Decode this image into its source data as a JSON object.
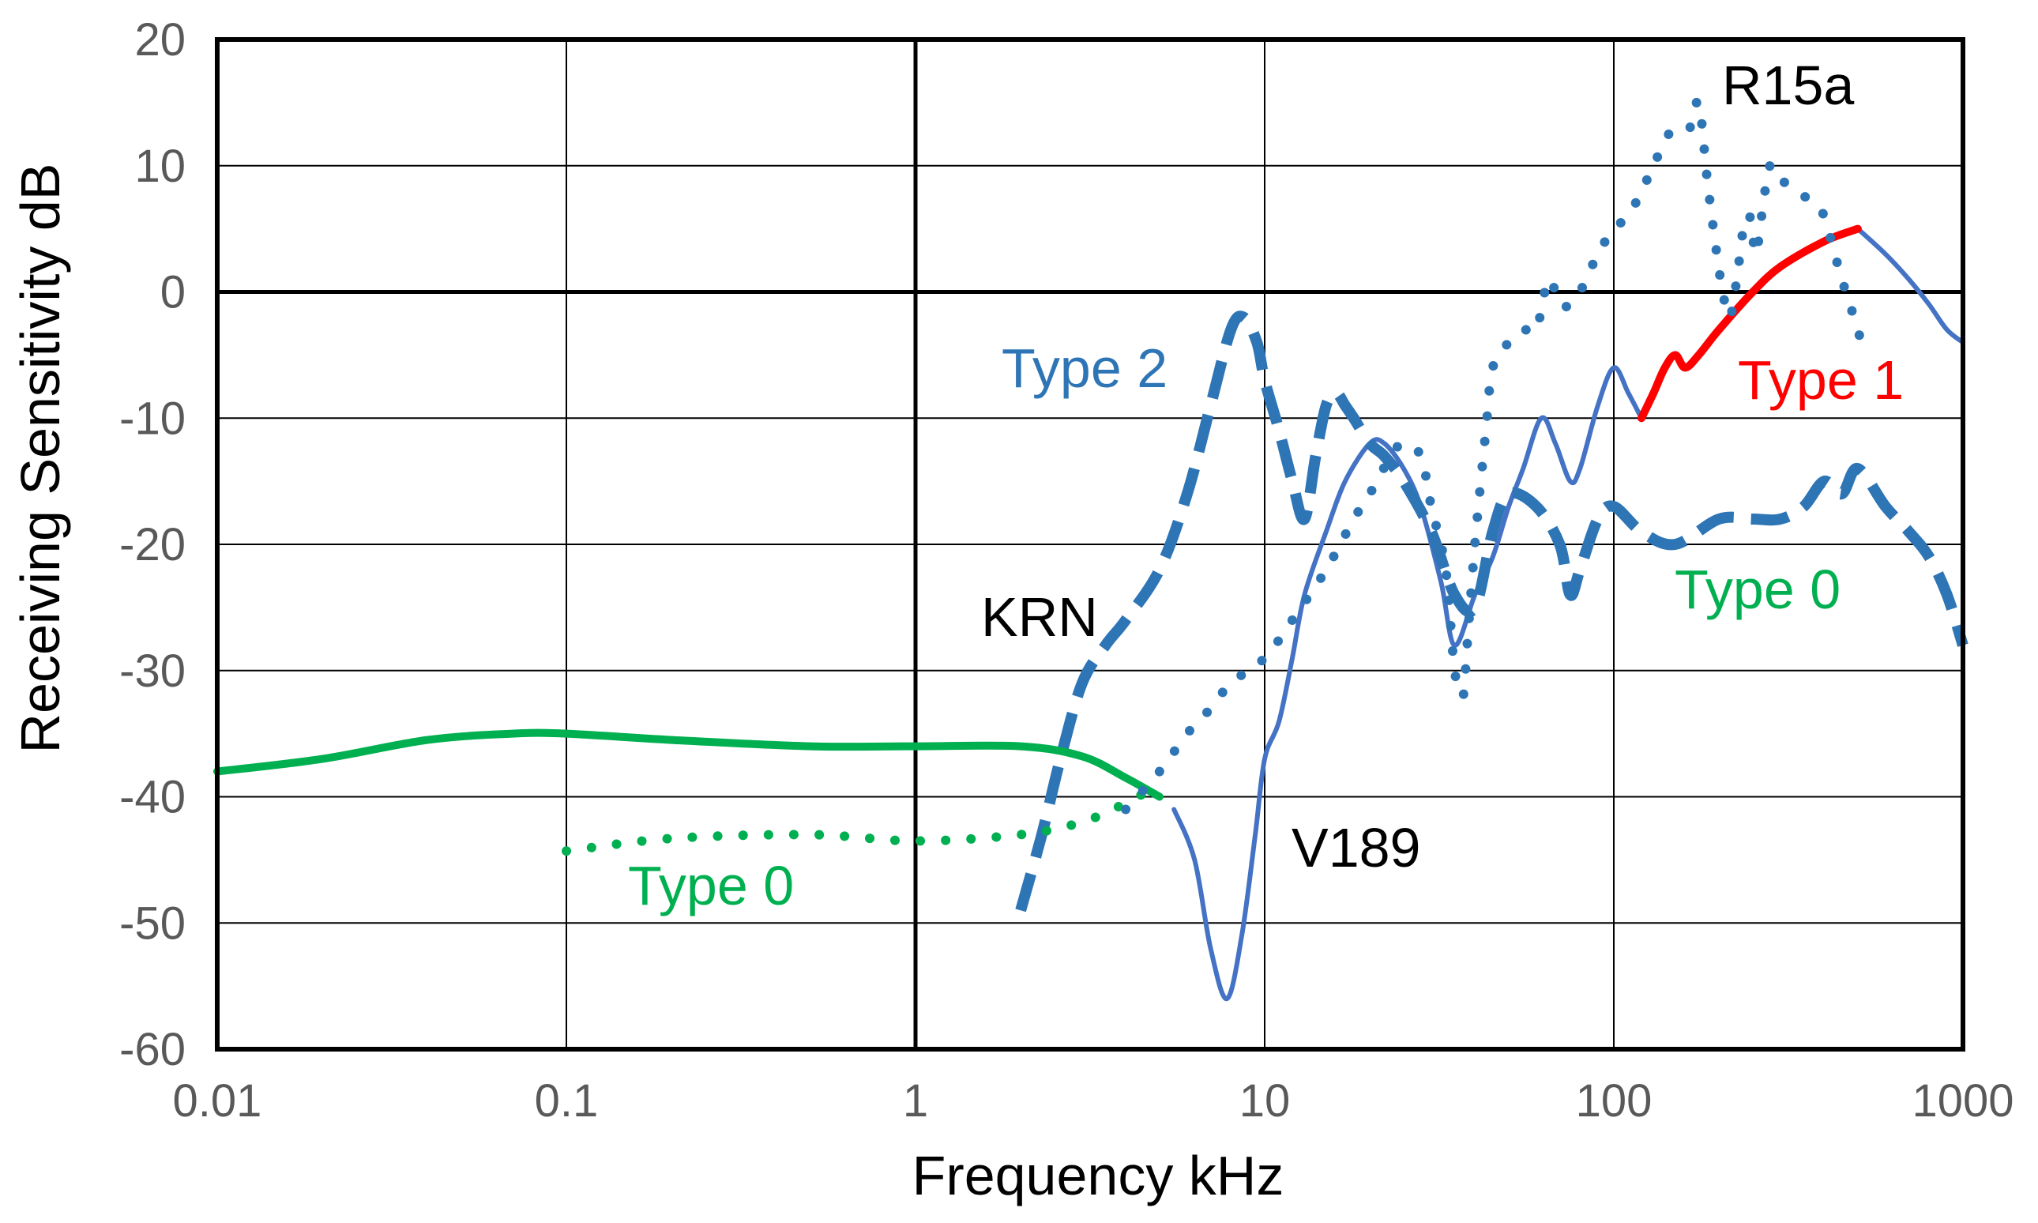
{
  "chart_data": {
    "type": "line",
    "title": "",
    "xlabel": "Frequency  kHz",
    "ylabel": "Receiving Sensitivity  dB",
    "x_scale": "log",
    "xlim": [
      0.01,
      1000
    ],
    "ylim": [
      -60,
      20
    ],
    "grid": true,
    "x_ticks": [
      0.01,
      0.1,
      1,
      10,
      100,
      1000
    ],
    "x_tick_labels": [
      "0.01",
      "0.1",
      "1",
      "10",
      "100",
      "1000"
    ],
    "y_ticks": [
      20,
      10,
      0,
      -10,
      -20,
      -30,
      -40,
      -50,
      -60
    ],
    "y_tick_labels": [
      "20",
      "10",
      "0",
      "-10",
      "-20",
      "-30",
      "-40",
      "-50",
      "-60"
    ],
    "series": [
      {
        "name": "V189",
        "style": "solid-thin",
        "color": "#4472C4",
        "points": [
          [
            5.5,
            -41
          ],
          [
            6.3,
            -45
          ],
          [
            7,
            -52
          ],
          [
            7.8,
            -56
          ],
          [
            8.6,
            -51
          ],
          [
            9.4,
            -43
          ],
          [
            10,
            -37
          ],
          [
            11,
            -34
          ],
          [
            12,
            -29
          ],
          [
            13,
            -24
          ],
          [
            15,
            -19
          ],
          [
            17,
            -15
          ],
          [
            20,
            -12
          ],
          [
            22,
            -12
          ],
          [
            25,
            -14
          ],
          [
            28,
            -17
          ],
          [
            32,
            -23
          ],
          [
            35,
            -28
          ],
          [
            40,
            -24
          ],
          [
            45,
            -21
          ],
          [
            50,
            -17
          ],
          [
            55,
            -14
          ],
          [
            62,
            -10
          ],
          [
            68,
            -12
          ],
          [
            75,
            -15
          ],
          [
            80,
            -14
          ],
          [
            90,
            -9
          ],
          [
            100,
            -6
          ],
          [
            110,
            -8
          ],
          [
            120,
            -10
          ]
        ]
      },
      {
        "name": "V189-high",
        "style": "solid-thin",
        "color": "#4472C4",
        "points": [
          [
            500,
            5
          ],
          [
            600,
            3
          ],
          [
            700,
            1
          ],
          [
            800,
            -1
          ],
          [
            900,
            -3
          ],
          [
            1000,
            -4
          ]
        ]
      },
      {
        "name": "Type 1",
        "style": "solid-thick",
        "color": "#FF0000",
        "points": [
          [
            120,
            -10
          ],
          [
            130,
            -8
          ],
          [
            140,
            -6
          ],
          [
            150,
            -5
          ],
          [
            160,
            -6
          ],
          [
            175,
            -5
          ],
          [
            200,
            -3
          ],
          [
            250,
            0
          ],
          [
            300,
            2
          ],
          [
            400,
            4
          ],
          [
            500,
            5
          ]
        ]
      },
      {
        "name": "Type 2 (KRN)",
        "style": "dashed",
        "color": "#2E75B6",
        "points": [
          [
            2,
            -49
          ],
          [
            2.3,
            -43
          ],
          [
            2.6,
            -37
          ],
          [
            3,
            -31
          ],
          [
            3.5,
            -28
          ],
          [
            4,
            -26
          ],
          [
            5,
            -22
          ],
          [
            6,
            -16
          ],
          [
            7,
            -9
          ],
          [
            8,
            -3
          ],
          [
            8.7,
            -2
          ],
          [
            9.5,
            -4
          ],
          [
            10,
            -7
          ],
          [
            11,
            -11
          ],
          [
            12,
            -15
          ],
          [
            13,
            -18
          ],
          [
            14,
            -13
          ],
          [
            15,
            -9
          ],
          [
            16,
            -8
          ],
          [
            17,
            -9
          ],
          [
            18,
            -10
          ],
          [
            20,
            -12
          ],
          [
            22,
            -13
          ],
          [
            25,
            -15
          ],
          [
            30,
            -19
          ],
          [
            35,
            -24
          ],
          [
            40,
            -25
          ],
          [
            45,
            -19
          ],
          [
            50,
            -16
          ],
          [
            60,
            -17
          ],
          [
            70,
            -20
          ],
          [
            75,
            -24
          ],
          [
            80,
            -22
          ],
          [
            90,
            -18
          ],
          [
            100,
            -17
          ],
          [
            120,
            -19
          ],
          [
            150,
            -20
          ],
          [
            200,
            -18
          ],
          [
            250,
            -18
          ],
          [
            300,
            -18
          ],
          [
            350,
            -17
          ],
          [
            400,
            -15
          ],
          [
            450,
            -16
          ],
          [
            500,
            -14
          ],
          [
            600,
            -17
          ],
          [
            700,
            -19
          ],
          [
            800,
            -21
          ],
          [
            900,
            -24
          ],
          [
            1000,
            -28
          ]
        ]
      },
      {
        "name": "Type 0 (solid)",
        "style": "solid-thick",
        "color": "#00B050",
        "points": [
          [
            0.01,
            -38
          ],
          [
            0.02,
            -37
          ],
          [
            0.04,
            -35.5
          ],
          [
            0.07,
            -35
          ],
          [
            0.1,
            -35
          ],
          [
            0.2,
            -35.5
          ],
          [
            0.5,
            -36
          ],
          [
            1,
            -36
          ],
          [
            2,
            -36
          ],
          [
            3,
            -36.8
          ],
          [
            4,
            -38.5
          ],
          [
            5,
            -40
          ]
        ]
      },
      {
        "name": "Type 0 (dotted)",
        "style": "dotted",
        "color": "#00B050",
        "points": [
          [
            0.1,
            -44.3
          ],
          [
            0.2,
            -43.3
          ],
          [
            0.5,
            -43
          ],
          [
            1,
            -43.5
          ],
          [
            2,
            -43
          ],
          [
            3,
            -42
          ],
          [
            4,
            -40.5
          ],
          [
            5,
            -39
          ]
        ]
      },
      {
        "name": "R15a",
        "style": "dotted",
        "color": "#2E75B6",
        "points": [
          [
            4,
            -41
          ],
          [
            5,
            -38
          ],
          [
            6,
            -35
          ],
          [
            7,
            -33
          ],
          [
            8,
            -31
          ],
          [
            10,
            -29
          ],
          [
            12,
            -26
          ],
          [
            15,
            -22
          ],
          [
            18,
            -18
          ],
          [
            20,
            -16
          ],
          [
            23,
            -13
          ],
          [
            25,
            -12
          ],
          [
            28,
            -13
          ],
          [
            30,
            -17
          ],
          [
            33,
            -22
          ],
          [
            35,
            -30
          ],
          [
            37,
            -32
          ],
          [
            38,
            -28
          ],
          [
            40,
            -20
          ],
          [
            43,
            -11
          ],
          [
            45,
            -6
          ],
          [
            50,
            -4
          ],
          [
            55,
            -3
          ],
          [
            60,
            -3
          ],
          [
            65,
            1
          ],
          [
            70,
            -1
          ],
          [
            75,
            -1
          ],
          [
            80,
            0
          ],
          [
            90,
            3
          ],
          [
            100,
            5
          ],
          [
            110,
            6
          ],
          [
            120,
            8
          ],
          [
            130,
            10
          ],
          [
            140,
            12
          ],
          [
            150,
            13
          ],
          [
            165,
            13
          ],
          [
            175,
            15
          ],
          [
            185,
            9
          ],
          [
            195,
            4
          ],
          [
            205,
            0
          ],
          [
            215,
            -2
          ],
          [
            225,
            1
          ],
          [
            235,
            5
          ],
          [
            245,
            6
          ],
          [
            255,
            3
          ],
          [
            265,
            6
          ],
          [
            280,
            10
          ],
          [
            300,
            9
          ],
          [
            330,
            8
          ],
          [
            380,
            7
          ],
          [
            400,
            6
          ],
          [
            420,
            4
          ],
          [
            450,
            1
          ],
          [
            500,
            -3
          ],
          [
            520,
            -5
          ]
        ]
      }
    ],
    "annotations": [
      {
        "text": "R15a",
        "color": "#000000"
      },
      {
        "text": "Type 2",
        "color": "#2E75B6"
      },
      {
        "text": "Type 1",
        "color": "#FF0000"
      },
      {
        "text": "KRN",
        "color": "#000000"
      },
      {
        "text": "Type 0",
        "color": "#00B050"
      },
      {
        "text": "V189",
        "color": "#000000"
      },
      {
        "text": "Type 0",
        "color": "#00B050"
      }
    ]
  }
}
